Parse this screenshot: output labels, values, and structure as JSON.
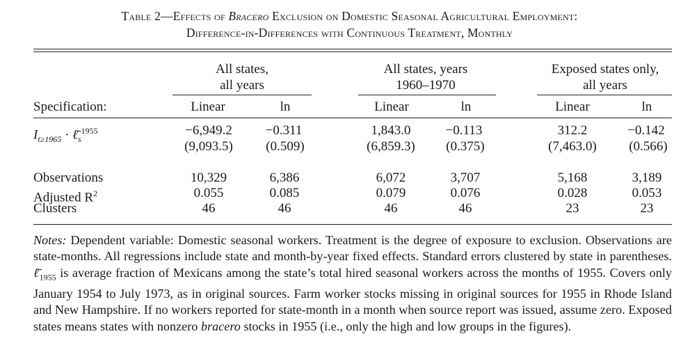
{
  "title": {
    "line1_prefix": "Table 2—Effects of ",
    "line1_italic": "Bracero",
    "line1_suffix": " Exclusion on Domestic Seasonal Agricultural Employment:",
    "line2": "Difference-in-Differences with Continuous Treatment, Monthly"
  },
  "groups": [
    {
      "line1": "All states,",
      "line2": "all years"
    },
    {
      "line1": "All states, years",
      "line2": "1960–1970"
    },
    {
      "line1": "Exposed states only,",
      "line2": "all years"
    }
  ],
  "spec_label": "Specification:",
  "columns": [
    "Linear",
    "ln",
    "Linear",
    "ln",
    "Linear",
    "ln"
  ],
  "treatment_row": {
    "label": "I_{t≥1965} · ℓ̄_s^{1955}",
    "label_main": "I",
    "label_sub": "t≥1965",
    "label_dot": " · ",
    "label_ell": "ℓ̄",
    "label_ell_sub": "s",
    "label_ell_sup": "1955",
    "estimates": [
      "−6,949.2",
      "−0.311",
      "1,843.0",
      "−0.113",
      "312.2",
      "−0.142"
    ],
    "std_errors": [
      "(9,093.5)",
      "(0.509)",
      "(6,859.3)",
      "(0.375)",
      "(7,463.0)",
      "(0.566)"
    ]
  },
  "stats": [
    {
      "label": "Observations",
      "values": [
        "10,329",
        "6,386",
        "6,072",
        "3,707",
        "5,168",
        "3,189"
      ]
    },
    {
      "label": "Adjusted R",
      "label_sup": "2",
      "values": [
        "0.055",
        "0.085",
        "0.079",
        "0.076",
        "0.028",
        "0.053"
      ]
    },
    {
      "label": "Clusters",
      "values": [
        "46",
        "46",
        "46",
        "46",
        "23",
        "23"
      ]
    }
  ],
  "notes": {
    "lead": "Notes:",
    "p1": " Dependent variable: Domestic seasonal workers. Treatment is the degree of exposure to exclusion. Observations are state-months. All regressions include state and month-by-year fixed effects. Standard errors clustered by state in parentheses. ",
    "ell": "ℓ̄",
    "ell_sub": "1955",
    "p2": " is average fraction of Mexicans among the state’s total hired seasonal workers across the months of 1955. Covers only January 1954 to July 1973, as in original sources. Farm worker stocks missing in original sources for 1955 in Rhode Island and New Hampshire. If no workers reported for state-month in a month when source report was issued, assume zero. Exposed states means states with nonzero ",
    "bracero": "bracero",
    "p3": " stocks in 1955 (i.e., only the high and low groups in the figures)."
  }
}
